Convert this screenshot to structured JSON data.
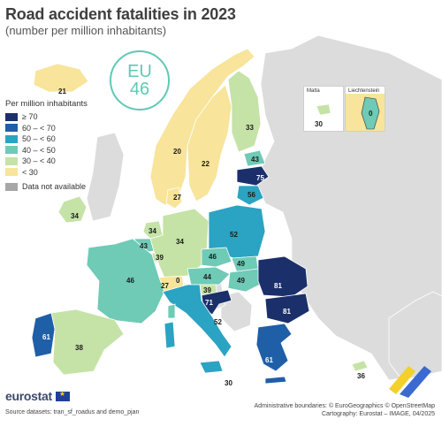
{
  "title": "Road accident fatalities in 2023",
  "subtitle": "(number per million inhabitants)",
  "eu_badge": {
    "label": "EU",
    "value": "46"
  },
  "legend": {
    "title": "Per million inhabitants",
    "classes": [
      {
        "label": "≥ 70",
        "color": "#1b2f6b"
      },
      {
        "label": "60 – < 70",
        "color": "#1f5fa8"
      },
      {
        "label": "50 – < 60",
        "color": "#2ba3c2"
      },
      {
        "label": "40 – < 50",
        "color": "#6fcab6"
      },
      {
        "label": "30 – < 40",
        "color": "#c5e3a6"
      },
      {
        "label": "< 30",
        "color": "#f8e49a"
      }
    ],
    "na": {
      "label": "Data not available",
      "color": "#a6a6a6"
    }
  },
  "colors": {
    "non_eu": "#dcdcdc",
    "sea": "#ffffff",
    "border": "#ffffff",
    "badge": "#5fc9b4"
  },
  "countries": [
    {
      "name": "Iceland",
      "value": "21"
    },
    {
      "name": "Norway",
      "value": "20"
    },
    {
      "name": "Sweden",
      "value": "22"
    },
    {
      "name": "Finland",
      "value": "33"
    },
    {
      "name": "Estonia",
      "value": "43"
    },
    {
      "name": "Latvia",
      "value": "75"
    },
    {
      "name": "Lithuania",
      "value": "56"
    },
    {
      "name": "Denmark",
      "value": "27"
    },
    {
      "name": "Ireland",
      "value": "34"
    },
    {
      "name": "Netherlands",
      "value": "34"
    },
    {
      "name": "Belgium",
      "value": "43"
    },
    {
      "name": "Luxembourg",
      "value": "39"
    },
    {
      "name": "Germany",
      "value": "34"
    },
    {
      "name": "Poland",
      "value": "52"
    },
    {
      "name": "Czechia",
      "value": "46"
    },
    {
      "name": "Slovakia",
      "value": "49"
    },
    {
      "name": "Austria",
      "value": "44"
    },
    {
      "name": "Hungary",
      "value": "49"
    },
    {
      "name": "Slovenia",
      "value": "39"
    },
    {
      "name": "Croatia",
      "value": "71"
    },
    {
      "name": "Switzerland",
      "value": "27"
    },
    {
      "name": "Liechtenstein",
      "value": "0"
    },
    {
      "name": "France",
      "value": "46"
    },
    {
      "name": "Italy",
      "value": "52"
    },
    {
      "name": "Romania",
      "value": "81"
    },
    {
      "name": "Bulgaria",
      "value": "81"
    },
    {
      "name": "Greece",
      "value": "61"
    },
    {
      "name": "Portugal",
      "value": "61"
    },
    {
      "name": "Spain",
      "value": "38"
    },
    {
      "name": "Malta",
      "value": "30"
    },
    {
      "name": "Cyprus",
      "value": "36"
    },
    {
      "name": "Sicily",
      "value": "30"
    }
  ],
  "insets": {
    "malta": {
      "label": "Malta",
      "value": "30"
    },
    "liechtenstein": {
      "label": "Liechtenstein",
      "value": "0"
    }
  },
  "footer": {
    "brand": "eurostat",
    "source": "Source datasets: tran_sf_roadus and demo_pjan",
    "credit_line1": "Administrative boundaries: © EuroGeographics © OpenStreetMap",
    "credit_line2": "Cartography: Eurostat – IMAGE, 04/2025"
  }
}
